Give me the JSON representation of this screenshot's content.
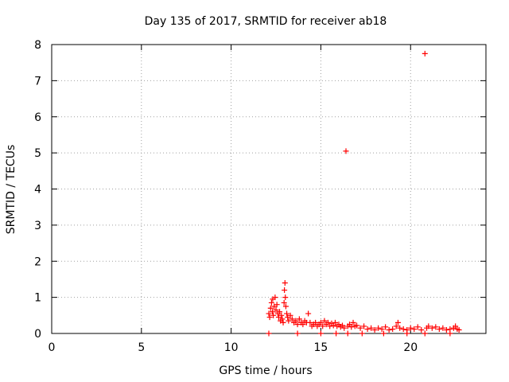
{
  "chart_data": {
    "type": "scatter",
    "title": "Day 135 of 2017, SRMTID for receiver ab18",
    "xlabel": "GPS time / hours",
    "ylabel": "SRMTID / TECUs",
    "xlim": [
      0,
      24.2
    ],
    "ylim": [
      0,
      8
    ],
    "xticks": [
      0,
      5,
      10,
      15,
      20
    ],
    "yticks": [
      0,
      1,
      2,
      3,
      4,
      5,
      6,
      7,
      8
    ],
    "grid": true,
    "legend": "none",
    "marker": "+",
    "color": "#ff0000",
    "series": [
      {
        "points": [
          [
            12.1,
            0.55
          ],
          [
            12.15,
            0.45
          ],
          [
            12.2,
            0.7
          ],
          [
            12.25,
            0.85
          ],
          [
            12.3,
            0.6
          ],
          [
            12.32,
            0.95
          ],
          [
            12.35,
            0.5
          ],
          [
            12.4,
            0.75
          ],
          [
            12.45,
            1.0
          ],
          [
            12.5,
            0.65
          ],
          [
            12.55,
            0.8
          ],
          [
            12.6,
            0.55
          ],
          [
            12.65,
            0.45
          ],
          [
            12.7,
            0.6
          ],
          [
            12.75,
            0.35
          ],
          [
            12.8,
            0.5
          ],
          [
            12.85,
            0.4
          ],
          [
            12.9,
            0.3
          ],
          [
            12.95,
            0.85
          ],
          [
            12.97,
            1.2
          ],
          [
            13.0,
            1.4
          ],
          [
            13.02,
            1.0
          ],
          [
            13.05,
            0.75
          ],
          [
            13.1,
            0.55
          ],
          [
            13.15,
            0.45
          ],
          [
            13.2,
            0.35
          ],
          [
            13.3,
            0.5
          ],
          [
            13.4,
            0.4
          ],
          [
            13.5,
            0.3
          ],
          [
            13.6,
            0.35
          ],
          [
            13.7,
            0.25
          ],
          [
            13.8,
            0.4
          ],
          [
            13.9,
            0.3
          ],
          [
            14.0,
            0.25
          ],
          [
            14.1,
            0.35
          ],
          [
            14.2,
            0.3
          ],
          [
            14.3,
            0.55
          ],
          [
            14.4,
            0.3
          ],
          [
            14.5,
            0.2
          ],
          [
            14.6,
            0.25
          ],
          [
            14.7,
            0.3
          ],
          [
            14.8,
            0.2
          ],
          [
            14.9,
            0.25
          ],
          [
            15.0,
            0.3
          ],
          [
            15.1,
            0.2
          ],
          [
            15.2,
            0.35
          ],
          [
            15.3,
            0.25
          ],
          [
            15.4,
            0.3
          ],
          [
            15.5,
            0.2
          ],
          [
            15.6,
            0.28
          ],
          [
            15.7,
            0.22
          ],
          [
            15.8,
            0.3
          ],
          [
            15.9,
            0.2
          ],
          [
            16.0,
            0.25
          ],
          [
            16.1,
            0.18
          ],
          [
            16.2,
            0.22
          ],
          [
            16.3,
            0.15
          ],
          [
            16.4,
            5.05
          ],
          [
            16.5,
            0.2
          ],
          [
            16.6,
            0.25
          ],
          [
            16.7,
            0.18
          ],
          [
            16.8,
            0.3
          ],
          [
            16.9,
            0.2
          ],
          [
            17.0,
            0.22
          ],
          [
            17.2,
            0.15
          ],
          [
            17.4,
            0.2
          ],
          [
            17.6,
            0.12
          ],
          [
            17.8,
            0.15
          ],
          [
            18.0,
            0.1
          ],
          [
            18.2,
            0.15
          ],
          [
            18.4,
            0.12
          ],
          [
            18.6,
            0.18
          ],
          [
            18.8,
            0.1
          ],
          [
            19.0,
            0.12
          ],
          [
            19.2,
            0.2
          ],
          [
            19.3,
            0.3
          ],
          [
            19.4,
            0.15
          ],
          [
            19.6,
            0.12
          ],
          [
            19.8,
            0.1
          ],
          [
            20.0,
            0.15
          ],
          [
            20.2,
            0.12
          ],
          [
            20.4,
            0.18
          ],
          [
            20.6,
            0.1
          ],
          [
            20.8,
            7.75
          ],
          [
            20.9,
            0.15
          ],
          [
            21.0,
            0.2
          ],
          [
            21.2,
            0.15
          ],
          [
            21.4,
            0.18
          ],
          [
            21.6,
            0.12
          ],
          [
            21.8,
            0.15
          ],
          [
            22.0,
            0.1
          ],
          [
            22.2,
            0.12
          ],
          [
            22.4,
            0.15
          ],
          [
            22.5,
            0.2
          ],
          [
            22.6,
            0.12
          ],
          [
            22.7,
            0.1
          ]
        ]
      },
      {
        "points": [
          [
            12.1,
            0.0
          ],
          [
            13.7,
            0.0
          ],
          [
            15.0,
            0.0
          ],
          [
            15.85,
            0.0
          ],
          [
            16.5,
            0.0
          ],
          [
            17.3,
            0.0
          ],
          [
            18.5,
            0.0
          ],
          [
            19.8,
            0.0
          ],
          [
            20.8,
            0.0
          ],
          [
            22.2,
            0.0
          ]
        ]
      }
    ]
  }
}
